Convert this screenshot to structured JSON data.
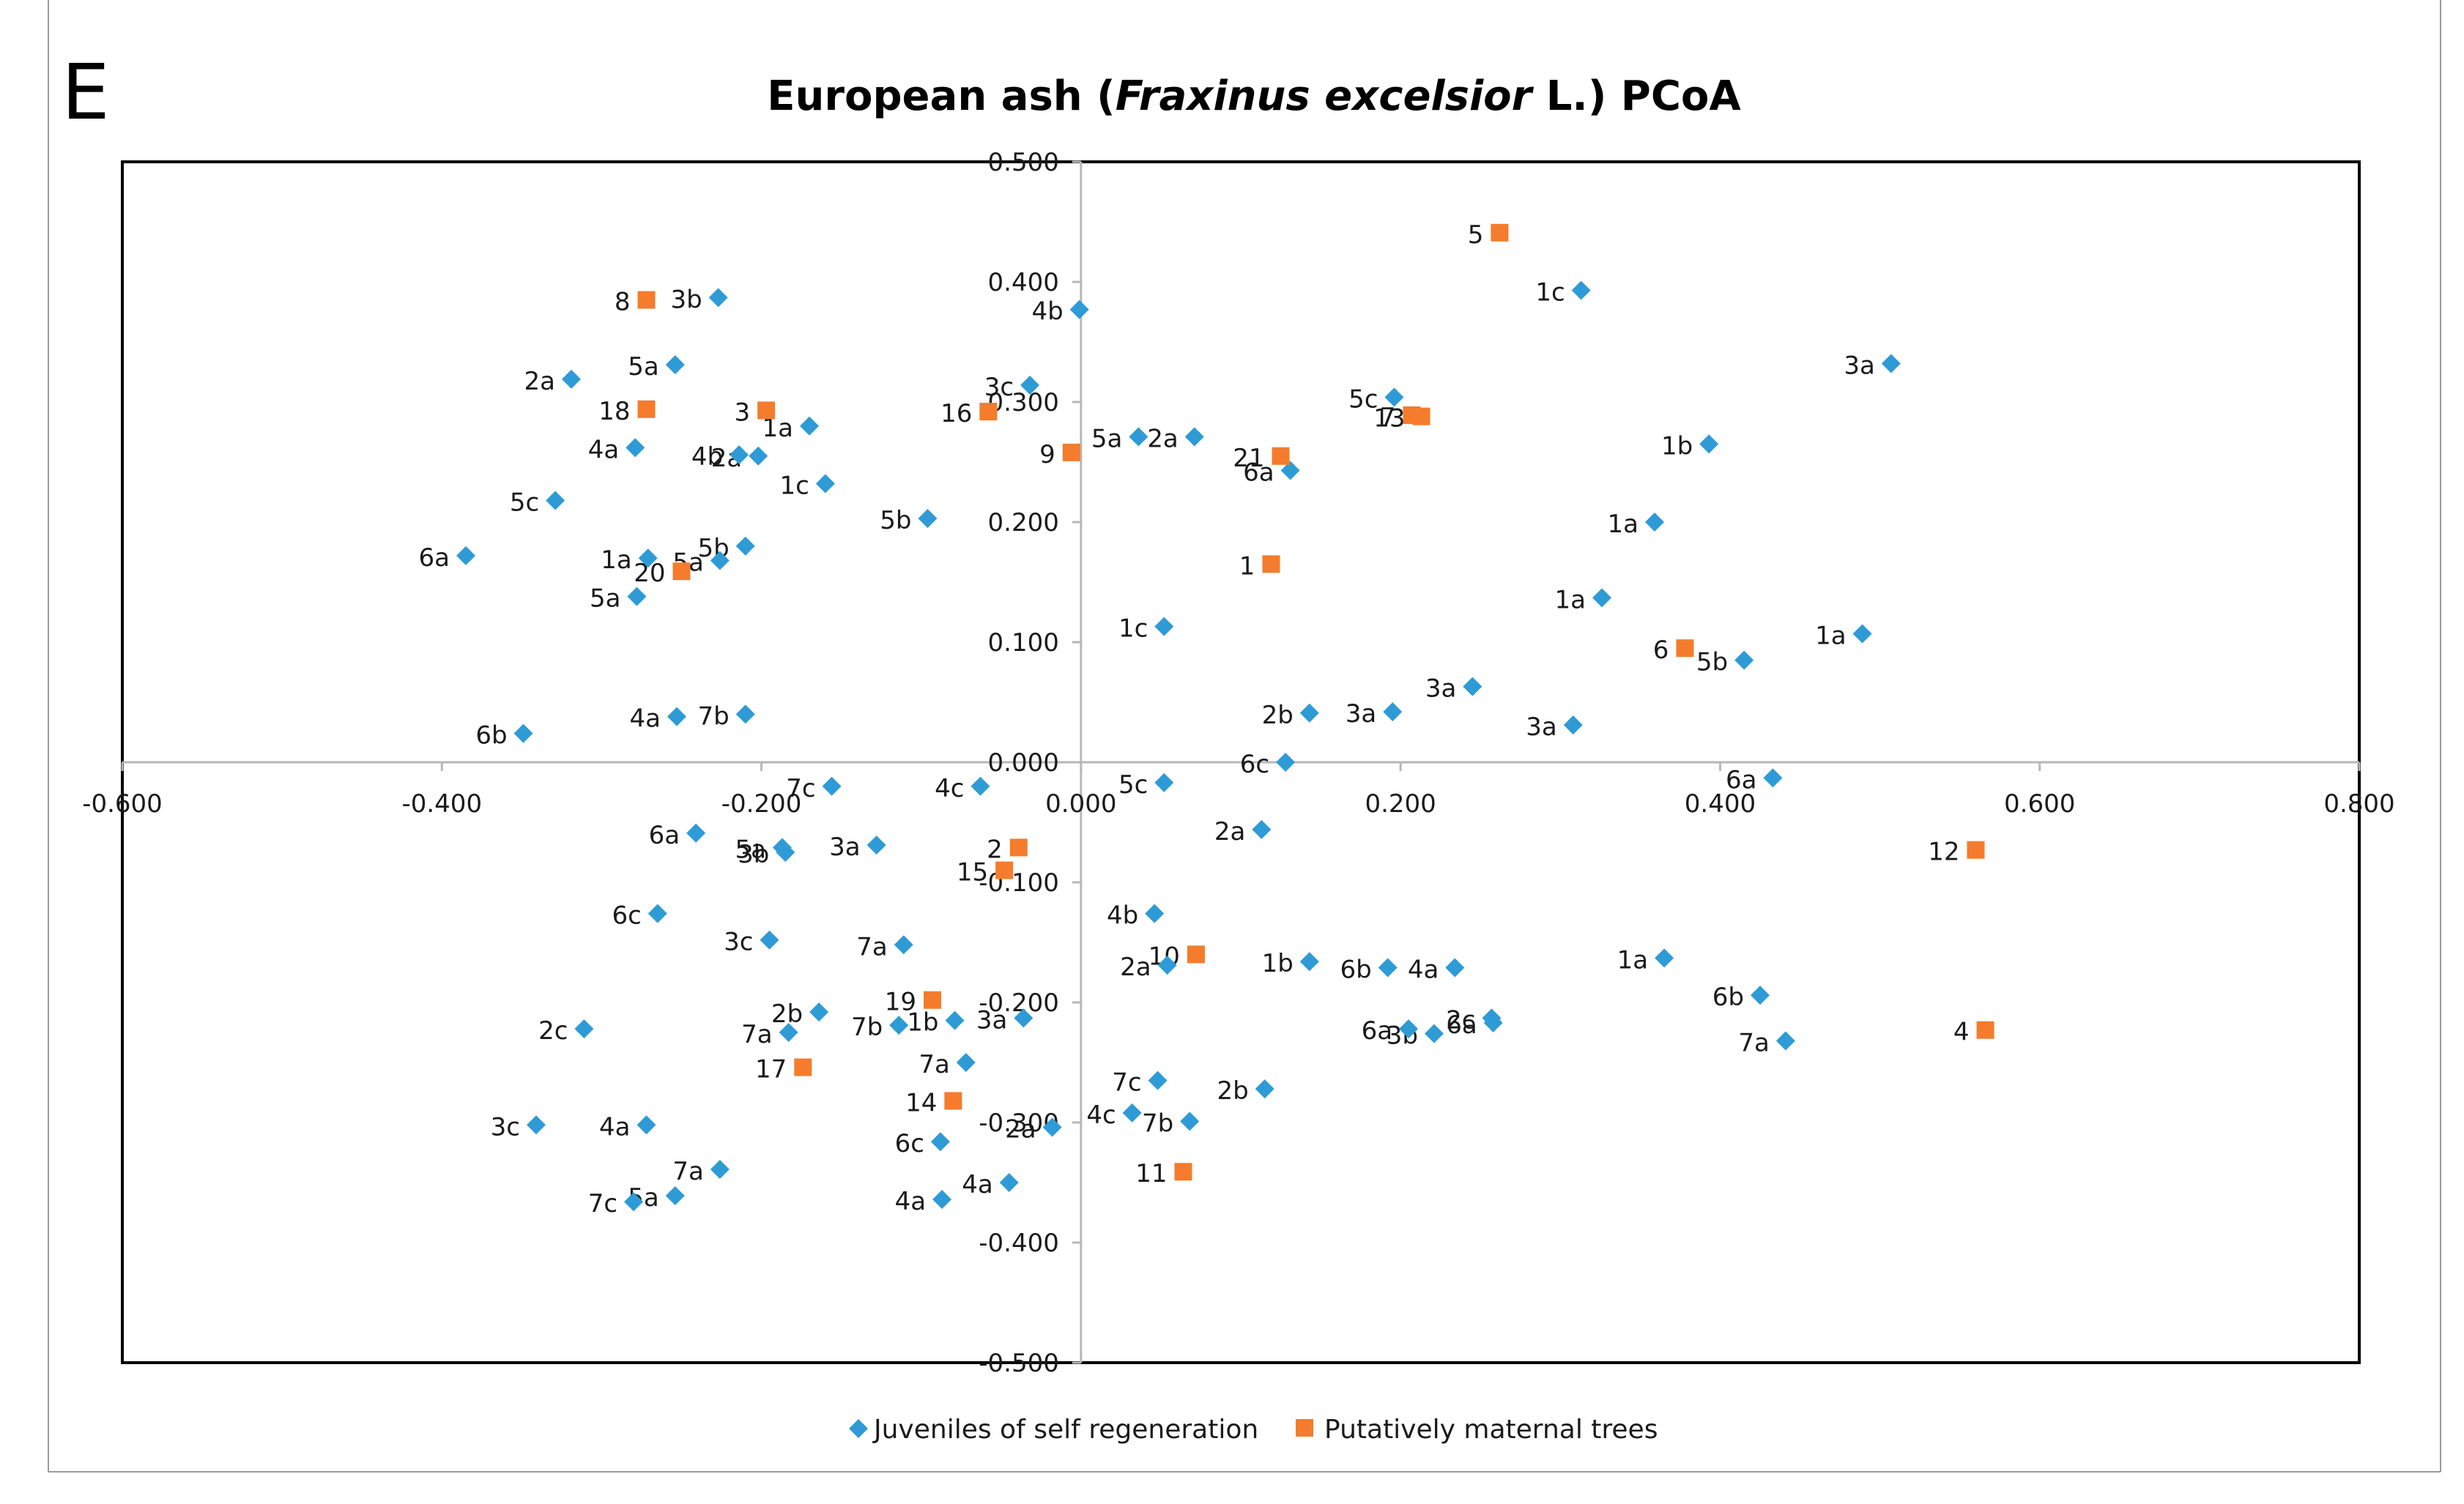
{
  "panel_label": "E",
  "title_parts": [
    "European ash (",
    "Fraxinus excelsior",
    " L.) PCoA"
  ],
  "colors": {
    "juveniles": "#2e9bd6",
    "maternal": "#f47c2c",
    "axis": "#b7b7b7",
    "frame": "#000000"
  },
  "chart_data": {
    "type": "scatter",
    "title": "European ash (Fraxinus excelsior L.) PCoA",
    "xlabel": "",
    "ylabel": "",
    "xlim": [
      -0.6,
      0.8
    ],
    "ylim": [
      -0.5,
      0.5
    ],
    "x_ticks": [
      -0.6,
      -0.4,
      -0.2,
      0.0,
      0.2,
      0.4,
      0.6,
      0.8
    ],
    "y_ticks": [
      -0.5,
      -0.4,
      -0.3,
      -0.2,
      -0.1,
      0.0,
      0.1,
      0.2,
      0.3,
      0.4,
      0.5
    ],
    "x_tick_labels": [
      "-0.600",
      "-0.400",
      "-0.200",
      "0.000",
      "0.200",
      "0.400",
      "0.600",
      "0.800"
    ],
    "y_tick_labels": [
      "-0.500",
      "-0.400",
      "-0.300",
      "-0.200",
      "-0.100",
      "0.000",
      "0.100",
      "0.200",
      "0.300",
      "0.400",
      "0.500"
    ],
    "grid": false,
    "legend": "bottom",
    "series": [
      {
        "name": "Juveniles of self regeneration",
        "marker": "diamond",
        "points": [
          {
            "x": -0.227,
            "y": 0.387,
            "label": "3b"
          },
          {
            "x": -0.319,
            "y": 0.319,
            "label": "2a"
          },
          {
            "x": -0.254,
            "y": 0.331,
            "label": "5a"
          },
          {
            "x": -0.279,
            "y": 0.262,
            "label": "4a"
          },
          {
            "x": -0.214,
            "y": 0.256,
            "label": "4b"
          },
          {
            "x": -0.202,
            "y": 0.255,
            "label": "2a"
          },
          {
            "x": -0.17,
            "y": 0.28,
            "label": "1a"
          },
          {
            "x": -0.16,
            "y": 0.232,
            "label": "1c"
          },
          {
            "x": -0.329,
            "y": 0.218,
            "label": "5c"
          },
          {
            "x": -0.385,
            "y": 0.172,
            "label": "6a"
          },
          {
            "x": -0.271,
            "y": 0.17,
            "label": "1a"
          },
          {
            "x": -0.226,
            "y": 0.168,
            "label": "5a"
          },
          {
            "x": -0.21,
            "y": 0.18,
            "label": "5b"
          },
          {
            "x": -0.278,
            "y": 0.138,
            "label": "5a"
          },
          {
            "x": -0.349,
            "y": 0.024,
            "label": "6b"
          },
          {
            "x": -0.253,
            "y": 0.038,
            "label": "4a"
          },
          {
            "x": -0.21,
            "y": 0.04,
            "label": "7b"
          },
          {
            "x": -0.096,
            "y": 0.203,
            "label": "5b"
          },
          {
            "x": -0.032,
            "y": 0.314,
            "label": "3c"
          },
          {
            "x": -0.001,
            "y": 0.377,
            "label": "4b"
          },
          {
            "x": 0.036,
            "y": 0.271,
            "label": "5a"
          },
          {
            "x": 0.071,
            "y": 0.271,
            "label": "2a"
          },
          {
            "x": 0.131,
            "y": 0.243,
            "label": "6a"
          },
          {
            "x": 0.196,
            "y": 0.304,
            "label": "5c"
          },
          {
            "x": 0.313,
            "y": 0.393,
            "label": "1c"
          },
          {
            "x": 0.507,
            "y": 0.332,
            "label": "3a"
          },
          {
            "x": 0.393,
            "y": 0.265,
            "label": "1b"
          },
          {
            "x": 0.359,
            "y": 0.2,
            "label": "1a"
          },
          {
            "x": 0.326,
            "y": 0.137,
            "label": "1a"
          },
          {
            "x": 0.052,
            "y": 0.113,
            "label": "1c"
          },
          {
            "x": 0.489,
            "y": 0.107,
            "label": "1a"
          },
          {
            "x": 0.415,
            "y": 0.085,
            "label": "5b"
          },
          {
            "x": 0.245,
            "y": 0.063,
            "label": "3a"
          },
          {
            "x": 0.143,
            "y": 0.041,
            "label": "2b"
          },
          {
            "x": 0.195,
            "y": 0.042,
            "label": "3a"
          },
          {
            "x": 0.308,
            "y": 0.031,
            "label": "3a"
          },
          {
            "x": 0.128,
            "y": 0.0,
            "label": "6c"
          },
          {
            "x": 0.433,
            "y": -0.013,
            "label": "6a"
          },
          {
            "x": 0.052,
            "y": -0.017,
            "label": "5c"
          },
          {
            "x": 0.113,
            "y": -0.056,
            "label": "2a"
          },
          {
            "x": -0.156,
            "y": -0.02,
            "label": "7c"
          },
          {
            "x": -0.063,
            "y": -0.02,
            "label": "4c"
          },
          {
            "x": -0.241,
            "y": -0.059,
            "label": "6a"
          },
          {
            "x": -0.187,
            "y": -0.071,
            "label": "5a"
          },
          {
            "x": -0.185,
            "y": -0.075,
            "label": "3b"
          },
          {
            "x": -0.128,
            "y": -0.069,
            "label": "3a"
          },
          {
            "x": -0.265,
            "y": -0.126,
            "label": "6c"
          },
          {
            "x": -0.195,
            "y": -0.148,
            "label": "3c"
          },
          {
            "x": -0.111,
            "y": -0.152,
            "label": "7a"
          },
          {
            "x": 0.046,
            "y": -0.126,
            "label": "4b"
          },
          {
            "x": 0.054,
            "y": -0.169,
            "label": "2a"
          },
          {
            "x": 0.143,
            "y": -0.166,
            "label": "1b"
          },
          {
            "x": 0.192,
            "y": -0.171,
            "label": "6b"
          },
          {
            "x": 0.234,
            "y": -0.171,
            "label": "4a"
          },
          {
            "x": 0.365,
            "y": -0.163,
            "label": "1a"
          },
          {
            "x": 0.425,
            "y": -0.194,
            "label": "6b"
          },
          {
            "x": 0.441,
            "y": -0.232,
            "label": "7a"
          },
          {
            "x": 0.257,
            "y": -0.213,
            "label": "2c"
          },
          {
            "x": 0.205,
            "y": -0.222,
            "label": "6a"
          },
          {
            "x": 0.221,
            "y": -0.226,
            "label": "3b"
          },
          {
            "x": 0.258,
            "y": -0.217,
            "label": "6a"
          },
          {
            "x": -0.164,
            "y": -0.208,
            "label": "2b"
          },
          {
            "x": -0.183,
            "y": -0.225,
            "label": "7a"
          },
          {
            "x": -0.114,
            "y": -0.219,
            "label": "7b"
          },
          {
            "x": -0.079,
            "y": -0.215,
            "label": "1b"
          },
          {
            "x": -0.036,
            "y": -0.213,
            "label": "3a"
          },
          {
            "x": -0.311,
            "y": -0.222,
            "label": "2c"
          },
          {
            "x": -0.072,
            "y": -0.25,
            "label": "7a"
          },
          {
            "x": 0.048,
            "y": -0.265,
            "label": "7c"
          },
          {
            "x": 0.115,
            "y": -0.272,
            "label": "2b"
          },
          {
            "x": 0.032,
            "y": -0.292,
            "label": "4c"
          },
          {
            "x": 0.068,
            "y": -0.299,
            "label": "7b"
          },
          {
            "x": -0.018,
            "y": -0.304,
            "label": "2a"
          },
          {
            "x": -0.341,
            "y": -0.302,
            "label": "3c"
          },
          {
            "x": -0.272,
            "y": -0.302,
            "label": "4a"
          },
          {
            "x": -0.088,
            "y": -0.316,
            "label": "6c"
          },
          {
            "x": -0.226,
            "y": -0.339,
            "label": "7a"
          },
          {
            "x": -0.045,
            "y": -0.35,
            "label": "4a"
          },
          {
            "x": -0.254,
            "y": -0.361,
            "label": "5a"
          },
          {
            "x": -0.28,
            "y": -0.366,
            "label": "7c"
          },
          {
            "x": -0.087,
            "y": -0.364,
            "label": "4a"
          }
        ]
      },
      {
        "name": "Putatively maternal trees",
        "marker": "square",
        "points": [
          {
            "x": 0.262,
            "y": 0.441,
            "label": "5"
          },
          {
            "x": -0.272,
            "y": 0.385,
            "label": "8"
          },
          {
            "x": -0.272,
            "y": 0.294,
            "label": "18"
          },
          {
            "x": -0.197,
            "y": 0.293,
            "label": "3"
          },
          {
            "x": -0.058,
            "y": 0.292,
            "label": "16"
          },
          {
            "x": -0.006,
            "y": 0.258,
            "label": "9"
          },
          {
            "x": 0.125,
            "y": 0.255,
            "label": "21"
          },
          {
            "x": 0.207,
            "y": 0.289,
            "label": "7"
          },
          {
            "x": 0.213,
            "y": 0.288,
            "label": "13"
          },
          {
            "x": 0.119,
            "y": 0.165,
            "label": "1"
          },
          {
            "x": -0.25,
            "y": 0.159,
            "label": "20"
          },
          {
            "x": 0.378,
            "y": 0.095,
            "label": "6"
          },
          {
            "x": -0.039,
            "y": -0.071,
            "label": "2"
          },
          {
            "x": -0.048,
            "y": -0.09,
            "label": "15"
          },
          {
            "x": 0.56,
            "y": -0.073,
            "label": "12"
          },
          {
            "x": 0.072,
            "y": -0.16,
            "label": "10"
          },
          {
            "x": -0.093,
            "y": -0.198,
            "label": "19"
          },
          {
            "x": 0.566,
            "y": -0.223,
            "label": "4"
          },
          {
            "x": -0.174,
            "y": -0.254,
            "label": "17"
          },
          {
            "x": -0.08,
            "y": -0.282,
            "label": "14"
          },
          {
            "x": 0.064,
            "y": -0.341,
            "label": "11"
          }
        ]
      }
    ]
  }
}
